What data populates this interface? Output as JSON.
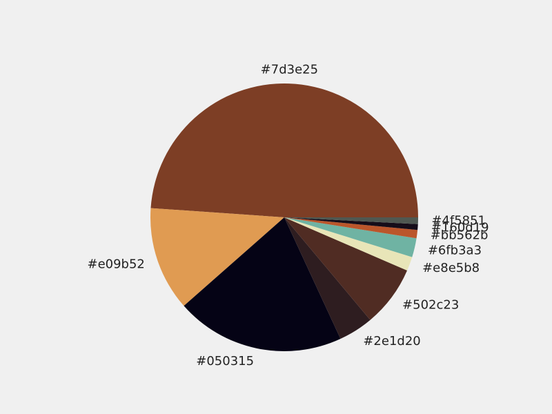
{
  "chart_data": {
    "type": "pie",
    "title": "",
    "start_angle_deg": 0,
    "direction": "counterclockwise",
    "slices": [
      {
        "label": "#7d3e25",
        "value": 48.9,
        "color": "#7d3e25"
      },
      {
        "label": "#e09b52",
        "value": 12.6,
        "color": "#e09b52"
      },
      {
        "label": "#050315",
        "value": 20.4,
        "color": "#050315"
      },
      {
        "label": "#2e1d20",
        "value": 4.2,
        "color": "#2e1d20"
      },
      {
        "label": "#502c23",
        "value": 7.4,
        "color": "#502c23"
      },
      {
        "label": "#e8e5b8",
        "value": 1.7,
        "color": "#e8e5b8"
      },
      {
        "label": "#6fb3a3",
        "value": 2.3,
        "color": "#6fb3a3"
      },
      {
        "label": "#bb562b",
        "value": 1.0,
        "color": "#bb562b"
      },
      {
        "label": "#160d19",
        "value": 0.7,
        "color": "#160d19"
      },
      {
        "label": "#4f5851",
        "value": 0.8,
        "color": "#4f5851"
      }
    ]
  }
}
